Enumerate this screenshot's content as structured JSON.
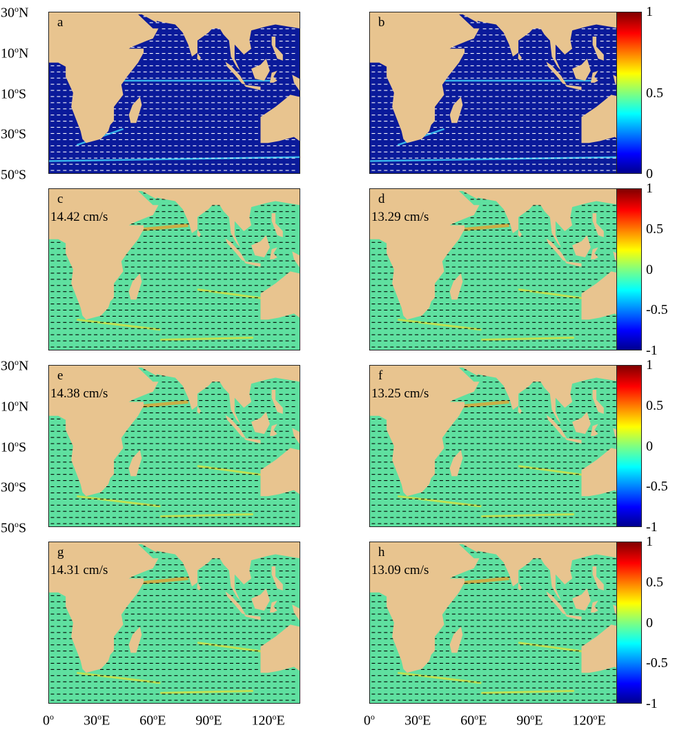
{
  "panels": [
    {
      "letter": "a",
      "speed": "",
      "scheme": "blue"
    },
    {
      "letter": "b",
      "speed": "",
      "scheme": "blue"
    },
    {
      "letter": "c",
      "speed": "14.42 cm/s",
      "scheme": "green"
    },
    {
      "letter": "d",
      "speed": "13.29 cm/s",
      "scheme": "green"
    },
    {
      "letter": "e",
      "speed": "14.38 cm/s",
      "scheme": "green"
    },
    {
      "letter": "f",
      "speed": "13.25 cm/s",
      "scheme": "green"
    },
    {
      "letter": "g",
      "speed": "14.31 cm/s",
      "scheme": "green"
    },
    {
      "letter": "h",
      "speed": "13.09 cm/s",
      "scheme": "green"
    }
  ],
  "lat_labels": [
    {
      "deg": "30",
      "hemi": "N"
    },
    {
      "deg": "10",
      "hemi": "N"
    },
    {
      "deg": "10",
      "hemi": "S"
    },
    {
      "deg": "30",
      "hemi": "S"
    },
    {
      "deg": "50",
      "hemi": "S"
    }
  ],
  "lon_labels": [
    {
      "deg": "0",
      "hemi": ""
    },
    {
      "deg": "30",
      "hemi": "E"
    },
    {
      "deg": "60",
      "hemi": "E"
    },
    {
      "deg": "90",
      "hemi": "E"
    },
    {
      "deg": "120",
      "hemi": "E"
    }
  ],
  "degree_symbol": "o",
  "colorbars": [
    {
      "labels": [
        "1",
        "0.5",
        "0"
      ]
    },
    {
      "labels": [
        "1",
        "0.5",
        "0",
        "-0.5",
        "-1"
      ]
    },
    {
      "labels": [
        "1",
        "0.5",
        "0",
        "-0.5",
        "-1"
      ]
    },
    {
      "labels": [
        "1",
        "0.5",
        "0",
        "-0.5",
        "-1"
      ]
    }
  ],
  "colors": {
    "land": "#e8c48f",
    "ocean_blue": "#0a1a9a",
    "ocean_green": "#5fe0a0",
    "vector_white": "#ffffff",
    "vector_black": "#000000"
  }
}
